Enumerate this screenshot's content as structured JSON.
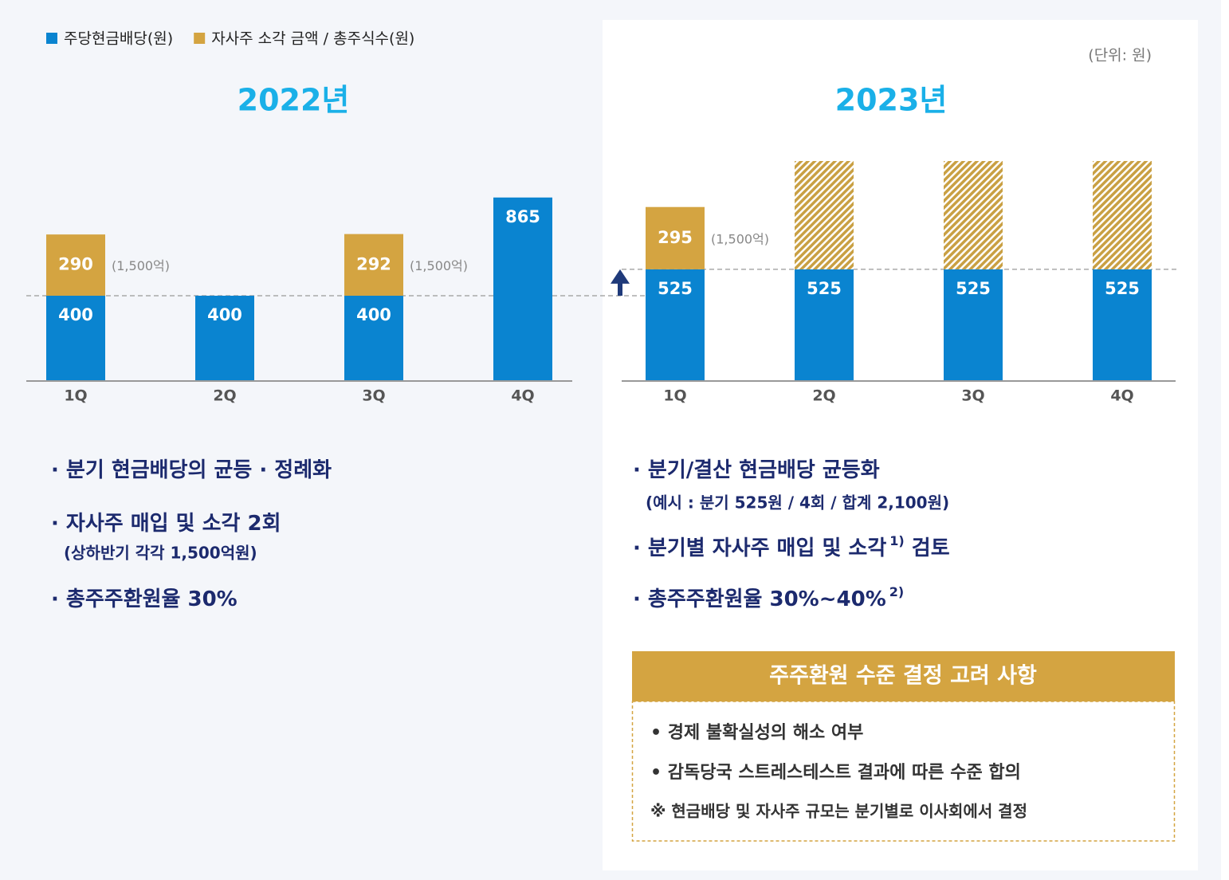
{
  "legend_unit": "(단위: 원)",
  "chart_data": [
    {
      "type": "bar",
      "stacked": true,
      "title": "2022년",
      "categories": [
        "1Q",
        "2Q",
        "3Q",
        "4Q"
      ],
      "series": [
        {
          "name": "주당현금배당(원)",
          "color": "#0a84d0",
          "values": [
            400,
            400,
            400,
            865
          ]
        },
        {
          "name": "자사주 소각 금액 / 총주식수(원)",
          "color": "#d4a441",
          "values": [
            290,
            null,
            292,
            null
          ]
        }
      ],
      "annotations": [
        "(1,500억)",
        null,
        "(1,500억)",
        null
      ]
    },
    {
      "type": "bar",
      "stacked": true,
      "title": "2023년",
      "categories": [
        "1Q",
        "2Q",
        "3Q",
        "4Q"
      ],
      "series": [
        {
          "color": "#0a84d0",
          "values": [
            525,
            525,
            525,
            525
          ]
        },
        {
          "color": "#d4a441",
          "values": [
            295,
            null,
            null,
            null
          ]
        }
      ],
      "annotations": [
        "(1,500억)",
        null,
        null,
        null
      ]
    }
  ],
  "notes_2022": [
    {
      "text": "· 분기 현금배당의 균등 · 정례화"
    },
    {
      "text": "· 자사주 매입 및 소각 2회",
      "sub": "(상하반기 각각 1,500억원)"
    },
    {
      "text": "· 총주주환원율 30%"
    }
  ],
  "notes_2023": [
    {
      "text": "· 분기/결산 현금배당 균등화",
      "sub": "(예시 : 분기 525원 / 4회 / 합계 2,100원)"
    },
    {
      "text": "· 분기별 자사주 매입 및 소각",
      "sup": "1)",
      "after": " 검토"
    },
    {
      "text": "· 총주주환원율 30%~40%",
      "sup": "2)"
    }
  ],
  "box": {
    "title": "주주환원 수준 결정 고려 사항",
    "items": [
      "• 경제 불확실성의 해소 여부",
      "• 감독당국 스트레스테스트 결과에 따른 수준 합의",
      "※ 현금배당 및 자사주 규모는 분기별로 이사회에서 결정"
    ]
  }
}
